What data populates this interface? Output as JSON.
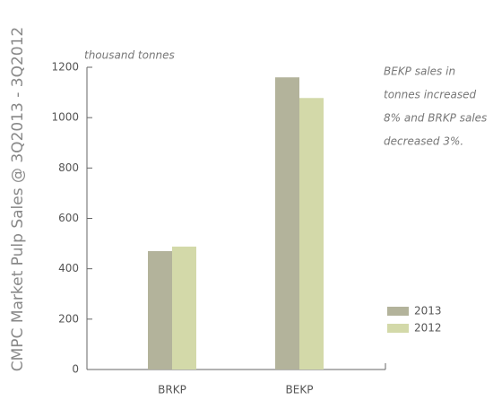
{
  "chart_data": {
    "type": "bar",
    "title": "CMPC Market Pulp Sales @ 3Q2013 - 3Q2012",
    "y_label": "thousand tonnes",
    "annotation": [
      "BEKP sales in",
      "tonnes increased",
      "8% and BRKP sales",
      "decreased 3%."
    ],
    "categories": [
      "BRKP",
      "BEKP"
    ],
    "series": [
      {
        "name": "2013",
        "color": "#b3b39b",
        "values": [
          470,
          1160
        ]
      },
      {
        "name": "2012",
        "color": "#d3d9a9",
        "values": [
          488,
          1078
        ]
      }
    ],
    "ylim": [
      0,
      1200
    ],
    "yticks": [
      0,
      200,
      400,
      600,
      800,
      1000,
      1200
    ],
    "grid": false
  }
}
